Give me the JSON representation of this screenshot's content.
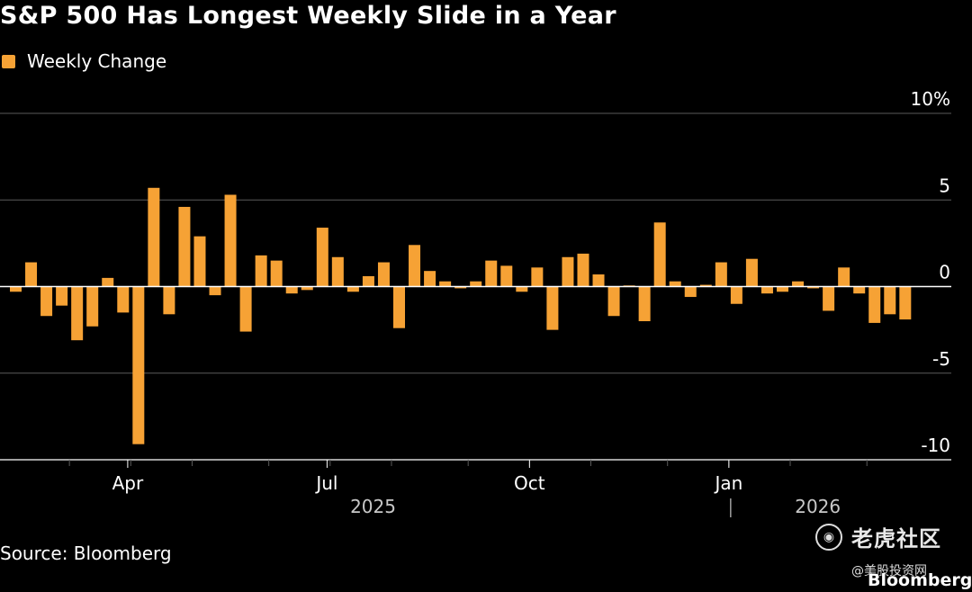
{
  "title": "S&P 500 Has Longest Weekly Slide in a Year",
  "legend": {
    "label": "Weekly Change",
    "color": "#f6a235"
  },
  "source": "Source: Bloomberg",
  "watermarks": {
    "tiger": "老虎社区",
    "meigu": "@美股投资网",
    "bloomberg": "Bloomberg"
  },
  "colors": {
    "bar": "#f6a235",
    "grid": "#5a5a5a",
    "axis": "#ffffff",
    "text": "#ffffff",
    "muted": "#c8c8c8"
  },
  "chart_data": {
    "type": "bar",
    "title": "S&P 500 Has Longest Weekly Slide in a Year",
    "series": [
      {
        "name": "Weekly Change",
        "values": [
          -0.3,
          1.4,
          -1.7,
          -1.1,
          -3.1,
          -2.3,
          0.5,
          -1.5,
          -9.1,
          5.7,
          -1.6,
          4.6,
          2.9,
          -0.5,
          5.3,
          -2.6,
          1.8,
          1.5,
          -0.4,
          -0.2,
          3.4,
          1.7,
          -0.3,
          0.6,
          1.4,
          -2.4,
          2.4,
          0.9,
          0.3,
          -0.1,
          0.3,
          1.5,
          1.2,
          -0.3,
          1.1,
          -2.5,
          1.7,
          1.9,
          0.7,
          -1.7,
          0.0,
          -2.0,
          3.7,
          0.3,
          -0.6,
          0.1,
          1.4,
          -1.0,
          1.6,
          -0.4,
          -0.3,
          0.3,
          -0.1,
          -1.4,
          1.1,
          -0.4,
          -2.1,
          -1.6,
          -1.9
        ]
      }
    ],
    "y_ticks": [
      "10%",
      "5",
      "0",
      "-5",
      "-10"
    ],
    "y_tick_values": [
      10,
      5,
      0,
      -5,
      -10
    ],
    "ylim": [
      -10,
      10
    ],
    "x_labels": [
      {
        "label": "Apr",
        "week": 7.3
      },
      {
        "label": "Jul",
        "week": 20.3
      },
      {
        "label": "Oct",
        "week": 33.5
      },
      {
        "label": "Jan",
        "week": 46.5
      }
    ],
    "x_minor_ticks": [
      3.5,
      7.5,
      11.5,
      16.5,
      20.5,
      24.5,
      29.5,
      33.5,
      37.5,
      42.5,
      46.5,
      50.5,
      55.5
    ],
    "year_labels": [
      {
        "label": "2025",
        "week": 23.3
      },
      {
        "label": "2026",
        "week": 52.3
      }
    ],
    "year_separator_week": 46.5,
    "grid": true,
    "legend_position": "top-left"
  }
}
